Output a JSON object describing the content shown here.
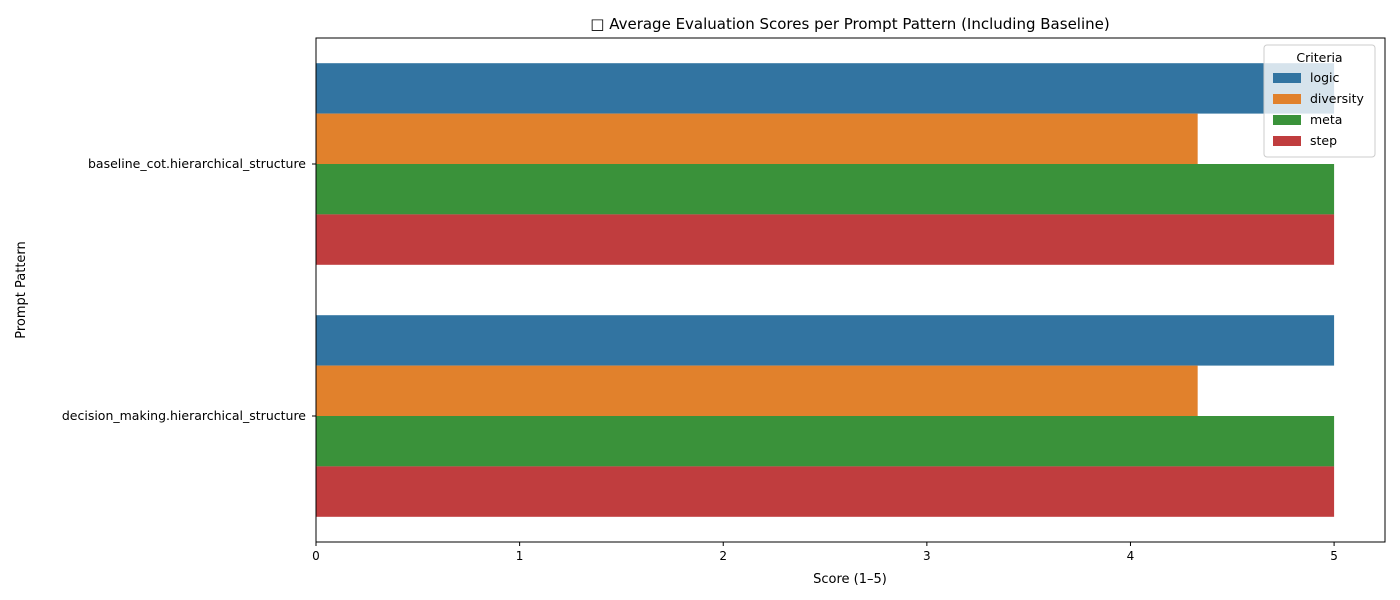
{
  "chart_data": {
    "type": "bar",
    "orientation": "horizontal",
    "title": "□ Average Evaluation Scores per Prompt Pattern (Including Baseline)",
    "xlabel": "Score (1–5)",
    "ylabel": "Prompt Pattern",
    "xlim": [
      0,
      5.25
    ],
    "xticks": [
      "0",
      "1",
      "2",
      "3",
      "4",
      "5"
    ],
    "grid": false,
    "categories": [
      "baseline_cot.hierarchical_structure",
      "decision_making.hierarchical_structure"
    ],
    "series": [
      {
        "name": "logic",
        "color": "#3274a1",
        "values": [
          5.0,
          5.0
        ]
      },
      {
        "name": "diversity",
        "color": "#e1812c",
        "values": [
          4.33,
          4.33
        ]
      },
      {
        "name": "meta",
        "color": "#3a923a",
        "values": [
          5.0,
          5.0
        ]
      },
      {
        "name": "step",
        "color": "#c03d3e",
        "values": [
          5.0,
          5.0
        ]
      }
    ],
    "legend": {
      "title": "Criteria",
      "placement": "top-right"
    }
  }
}
